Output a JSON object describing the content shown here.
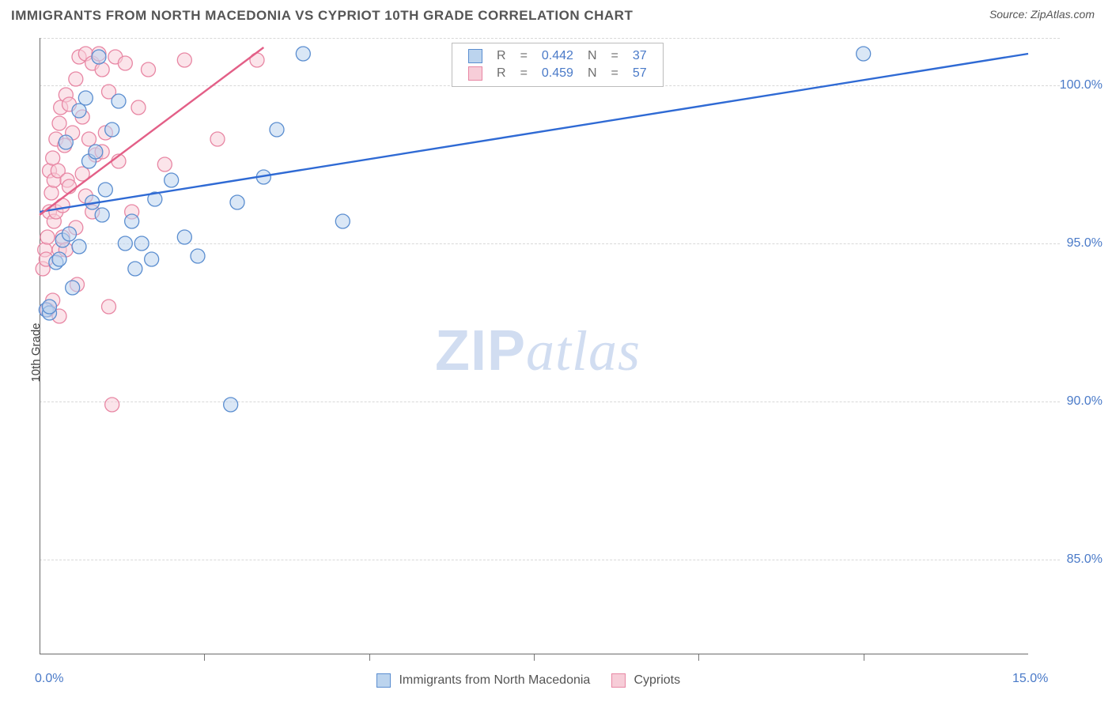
{
  "title": "IMMIGRANTS FROM NORTH MACEDONIA VS CYPRIOT 10TH GRADE CORRELATION CHART",
  "source_label": "Source:",
  "source_value": "ZipAtlas.com",
  "ylabel": "10th Grade",
  "watermark_a": "ZIP",
  "watermark_b": "atlas",
  "chart": {
    "type": "scatter",
    "x_domain": [
      0.0,
      15.0
    ],
    "y_domain": [
      82.0,
      101.5
    ],
    "y_gridlines": [
      85.0,
      90.0,
      95.0,
      100.0,
      101.5
    ],
    "y_ticks": [
      {
        "v": 85.0,
        "label": "85.0%"
      },
      {
        "v": 90.0,
        "label": "90.0%"
      },
      {
        "v": 95.0,
        "label": "95.0%"
      },
      {
        "v": 100.0,
        "label": "100.0%"
      }
    ],
    "x_ticks_minor": [
      2.5,
      5.0,
      7.5,
      10.0,
      12.5
    ],
    "x_tick_labels": [
      {
        "v": 0.0,
        "label": "0.0%"
      },
      {
        "v": 15.0,
        "label": "15.0%"
      }
    ],
    "marker_radius": 9,
    "marker_opacity": 0.55,
    "series": [
      {
        "name": "Immigrants from North Macedonia",
        "color_fill": "#bcd4ee",
        "color_stroke": "#5b8ed0",
        "line_color": "#2f6ad4",
        "r_value": "0.442",
        "n_value": "37",
        "trend": [
          [
            0.0,
            96.0
          ],
          [
            15.0,
            101.0
          ]
        ],
        "points": [
          [
            0.1,
            92.9
          ],
          [
            0.15,
            92.8
          ],
          [
            0.15,
            93.0
          ],
          [
            0.25,
            94.4
          ],
          [
            0.3,
            94.5
          ],
          [
            0.35,
            95.1
          ],
          [
            0.4,
            98.2
          ],
          [
            0.45,
            95.3
          ],
          [
            0.5,
            93.6
          ],
          [
            0.6,
            99.2
          ],
          [
            0.6,
            94.9
          ],
          [
            0.7,
            99.6
          ],
          [
            0.75,
            97.6
          ],
          [
            0.8,
            96.3
          ],
          [
            0.85,
            97.9
          ],
          [
            0.9,
            100.9
          ],
          [
            0.95,
            95.9
          ],
          [
            1.0,
            96.7
          ],
          [
            1.1,
            98.6
          ],
          [
            1.2,
            99.5
          ],
          [
            1.3,
            95.0
          ],
          [
            1.4,
            95.7
          ],
          [
            1.45,
            94.2
          ],
          [
            1.55,
            95.0
          ],
          [
            1.7,
            94.5
          ],
          [
            1.75,
            96.4
          ],
          [
            2.0,
            97.0
          ],
          [
            2.2,
            95.2
          ],
          [
            2.4,
            94.6
          ],
          [
            2.9,
            89.9
          ],
          [
            3.0,
            96.3
          ],
          [
            3.4,
            97.1
          ],
          [
            3.6,
            98.6
          ],
          [
            4.0,
            101.0
          ],
          [
            4.6,
            95.7
          ],
          [
            6.6,
            100.9
          ],
          [
            12.5,
            101.0
          ]
        ]
      },
      {
        "name": "Cypriots",
        "color_fill": "#f7cdd8",
        "color_stroke": "#e887a4",
        "line_color": "#e35f87",
        "r_value": "0.459",
        "n_value": "57",
        "trend": [
          [
            0.0,
            95.9
          ],
          [
            3.4,
            101.2
          ]
        ],
        "points": [
          [
            0.05,
            94.2
          ],
          [
            0.08,
            94.8
          ],
          [
            0.1,
            94.5
          ],
          [
            0.12,
            95.2
          ],
          [
            0.12,
            92.9
          ],
          [
            0.15,
            96.0
          ],
          [
            0.15,
            97.3
          ],
          [
            0.18,
            96.6
          ],
          [
            0.2,
            97.7
          ],
          [
            0.2,
            93.2
          ],
          [
            0.22,
            97.0
          ],
          [
            0.22,
            95.7
          ],
          [
            0.25,
            98.3
          ],
          [
            0.25,
            96.0
          ],
          [
            0.28,
            97.3
          ],
          [
            0.3,
            92.7
          ],
          [
            0.3,
            98.8
          ],
          [
            0.3,
            94.8
          ],
          [
            0.32,
            99.3
          ],
          [
            0.35,
            95.2
          ],
          [
            0.35,
            96.2
          ],
          [
            0.38,
            98.1
          ],
          [
            0.4,
            94.8
          ],
          [
            0.4,
            99.7
          ],
          [
            0.42,
            97.0
          ],
          [
            0.45,
            96.8
          ],
          [
            0.45,
            99.4
          ],
          [
            0.5,
            98.5
          ],
          [
            0.55,
            100.2
          ],
          [
            0.55,
            95.5
          ],
          [
            0.57,
            93.7
          ],
          [
            0.6,
            100.9
          ],
          [
            0.65,
            97.2
          ],
          [
            0.65,
            99.0
          ],
          [
            0.7,
            101.0
          ],
          [
            0.7,
            96.5
          ],
          [
            0.75,
            98.3
          ],
          [
            0.8,
            100.7
          ],
          [
            0.8,
            96.0
          ],
          [
            0.85,
            97.8
          ],
          [
            0.9,
            101.0
          ],
          [
            0.95,
            100.5
          ],
          [
            0.95,
            97.9
          ],
          [
            1.0,
            98.5
          ],
          [
            1.05,
            99.8
          ],
          [
            1.05,
            93.0
          ],
          [
            1.1,
            89.9
          ],
          [
            1.15,
            100.9
          ],
          [
            1.2,
            97.6
          ],
          [
            1.3,
            100.7
          ],
          [
            1.4,
            96.0
          ],
          [
            1.5,
            99.3
          ],
          [
            1.65,
            100.5
          ],
          [
            1.9,
            97.5
          ],
          [
            2.2,
            100.8
          ],
          [
            2.7,
            98.3
          ],
          [
            3.3,
            100.8
          ]
        ]
      }
    ]
  },
  "legend_labels": {
    "r": "R",
    "eq": "=",
    "n": "N"
  }
}
